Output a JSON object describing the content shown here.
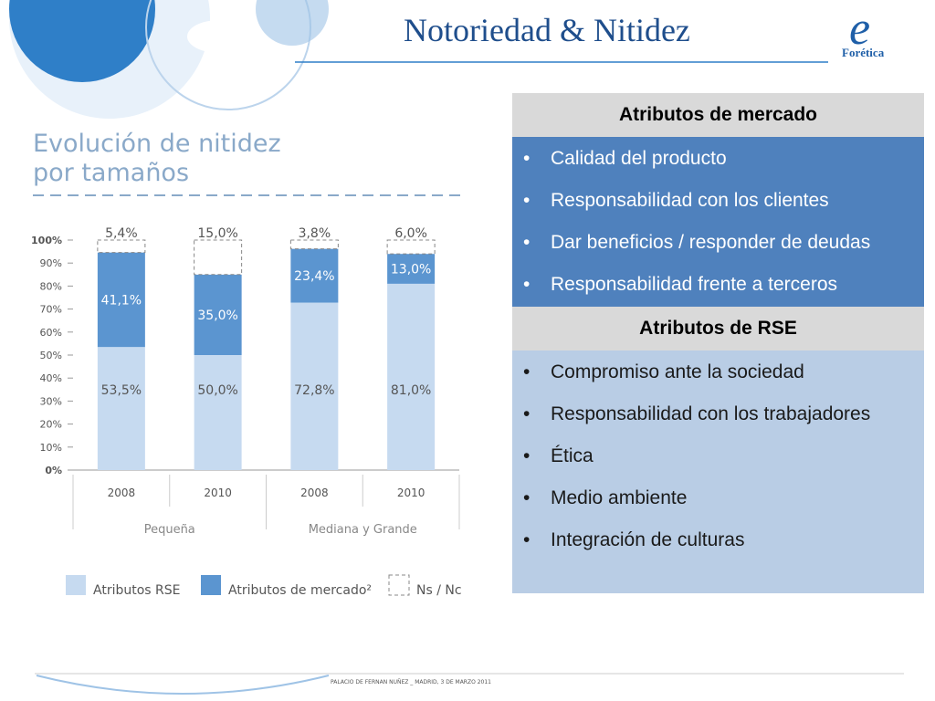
{
  "header": {
    "title": "Notoriedad & Nitidez",
    "logo": "Forética"
  },
  "chart_data": {
    "type": "stacked-bar",
    "title": "Evolución de nitidez por tamaños",
    "categories": [
      "2008",
      "2010",
      "2008",
      "2010"
    ],
    "groups": [
      "Pequeña",
      "Mediana y Grande"
    ],
    "series": [
      {
        "name": "Atributos RSE",
        "color": "#c6daf0",
        "values": [
          53.5,
          50.0,
          72.8,
          81.0
        ],
        "value_labels": [
          "53,5%",
          "50,0%",
          "72,8%",
          "81,0%"
        ]
      },
      {
        "name": "Atributos de mercado²",
        "color": "#5b95d0",
        "values": [
          41.1,
          35.0,
          23.4,
          13.0
        ],
        "value_labels": [
          "41,1%",
          "35,0%",
          "23,4%",
          "13,0%"
        ]
      },
      {
        "name": "Ns / Nc",
        "color": "#ffffff",
        "values": [
          5.4,
          15.0,
          3.8,
          6.0
        ],
        "value_labels": [
          "5,4%",
          "15,0%",
          "3,8%",
          "6,0%"
        ]
      }
    ],
    "ylim": [
      0,
      100
    ],
    "yticks": [
      {
        "value": 0,
        "label": "0%"
      },
      {
        "value": 10,
        "label": "10%"
      },
      {
        "value": 20,
        "label": "20%"
      },
      {
        "value": 30,
        "label": "30%"
      },
      {
        "value": 40,
        "label": "40%"
      },
      {
        "value": 50,
        "label": "50%"
      },
      {
        "value": 60,
        "label": "60%"
      },
      {
        "value": 70,
        "label": "70%"
      },
      {
        "value": 80,
        "label": "80%"
      },
      {
        "value": 90,
        "label": "90%"
      },
      {
        "value": 100,
        "label": "100%"
      }
    ]
  },
  "table": {
    "sections": [
      {
        "header": "Atributos de mercado",
        "items": [
          "Calidad del producto",
          "Responsabilidad con los clientes",
          "Dar beneficios / responder  de deudas",
          "Responsabilidad frente a terceros"
        ]
      },
      {
        "header": "Atributos de RSE",
        "items": [
          "Compromiso ante la sociedad",
          "Responsabilidad con los trabajadores",
          "Ética",
          "Medio ambiente",
          "Integración de culturas"
        ]
      }
    ]
  },
  "footer": {
    "text": "PALACIO DE FERNAN NUÑEZ _ MADRID, 3 DE MARZO 2011"
  }
}
